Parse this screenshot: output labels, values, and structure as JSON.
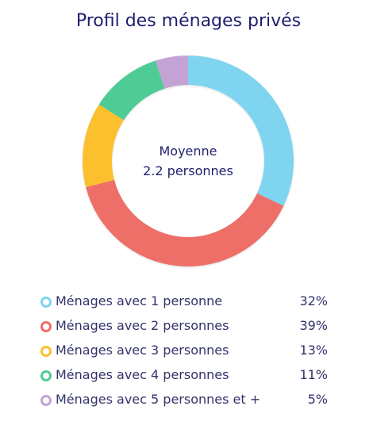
{
  "chart_data": {
    "type": "pie",
    "variant": "donut",
    "title": "Profil des ménages privés",
    "center_text": [
      "Moyenne",
      "2.2 personnes"
    ],
    "categories": [
      "Ménages avec 1 personne",
      "Ménages avec 2 personnes",
      "Ménages avec 3 personnes",
      "Ménages avec 4 personnes",
      "Ménages avec 5 personnes et +"
    ],
    "values": [
      32,
      39,
      13,
      11,
      5
    ],
    "value_labels": [
      "32%",
      "39%",
      "13%",
      "11%",
      "5%"
    ],
    "colors": [
      "#7fd4f0",
      "#ee6e67",
      "#fcc02e",
      "#4fcb95",
      "#c3a3d4"
    ],
    "legend_position": "bottom"
  }
}
